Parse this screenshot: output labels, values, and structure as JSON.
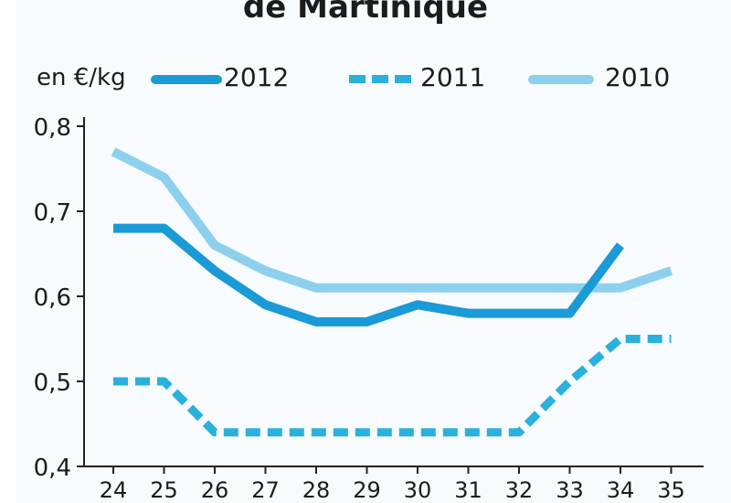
{
  "chart_data": {
    "type": "line",
    "title": "de Martinique",
    "ylabel": "en €/kg",
    "xlabel": "",
    "x": [
      24,
      25,
      26,
      27,
      28,
      29,
      30,
      31,
      32,
      33,
      34,
      35
    ],
    "ylim": [
      0.4,
      0.8
    ],
    "yticks": [
      "0,4",
      "0,5",
      "0,6",
      "0,7",
      "0,8"
    ],
    "xticks": [
      "24",
      "25",
      "26",
      "27",
      "28",
      "29",
      "30",
      "31",
      "32",
      "33",
      "34",
      "35"
    ],
    "grid": false,
    "legend_position": "top",
    "series": [
      {
        "name": "2012",
        "color": "#1a9ad6",
        "style": "solid",
        "values": [
          0.68,
          0.68,
          0.63,
          0.59,
          0.57,
          0.57,
          0.59,
          0.58,
          0.58,
          0.58,
          0.66,
          null
        ]
      },
      {
        "name": "2011",
        "color": "#2ab0dc",
        "style": "dashed",
        "values": [
          0.5,
          0.5,
          0.44,
          0.44,
          0.44,
          0.44,
          0.44,
          0.44,
          0.44,
          0.5,
          0.55,
          0.55
        ]
      },
      {
        "name": "2010",
        "color": "#8dd0ee",
        "style": "solid",
        "values": [
          0.77,
          0.74,
          0.66,
          0.63,
          0.61,
          0.61,
          0.61,
          0.61,
          0.61,
          0.61,
          0.61,
          0.63
        ]
      }
    ]
  }
}
